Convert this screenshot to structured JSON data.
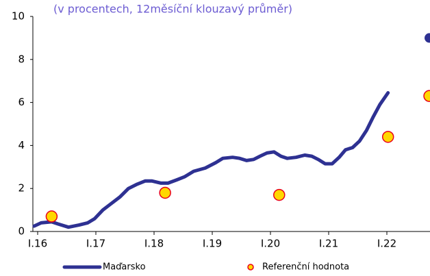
{
  "chart_data": {
    "type": "line",
    "subtitle": "(v procentech, 12měsíční klouzavý průměr)",
    "xlim": [
      2015.92,
      2022.75
    ],
    "xticks": [
      {
        "value": 2016,
        "label": "I.16"
      },
      {
        "value": 2017,
        "label": "I.17"
      },
      {
        "value": 2018,
        "label": "I.18"
      },
      {
        "value": 2019,
        "label": "I.19"
      },
      {
        "value": 2020,
        "label": "I.20"
      },
      {
        "value": 2021,
        "label": "I.21"
      },
      {
        "value": 2022,
        "label": "I.22"
      }
    ],
    "ylim": [
      0,
      10
    ],
    "yticks": [
      0,
      2,
      4,
      6,
      8,
      10
    ],
    "legend": "bottom",
    "series": [
      {
        "name": "Maďarsko",
        "color": "#2e3192",
        "style": "line",
        "x": [
          2015.94,
          2016.06,
          2016.24,
          2016.35,
          2016.53,
          2016.71,
          2016.86,
          2016.98,
          2017.12,
          2017.24,
          2017.41,
          2017.56,
          2017.71,
          2017.85,
          2017.96,
          2018.12,
          2018.24,
          2018.39,
          2018.53,
          2018.68,
          2018.88,
          2019.06,
          2019.18,
          2019.35,
          2019.47,
          2019.59,
          2019.71,
          2019.82,
          2019.94,
          2020.06,
          2020.18,
          2020.29,
          2020.44,
          2020.59,
          2020.71,
          2020.82,
          2020.94,
          2021.06,
          2021.18,
          2021.29,
          2021.41,
          2021.53,
          2021.65,
          2021.76,
          2021.88,
          2022.02
        ],
        "values": [
          0.25,
          0.4,
          0.45,
          0.35,
          0.2,
          0.3,
          0.4,
          0.6,
          1.0,
          1.25,
          1.6,
          2.0,
          2.2,
          2.35,
          2.35,
          2.25,
          2.25,
          2.4,
          2.55,
          2.8,
          2.95,
          3.2,
          3.4,
          3.45,
          3.4,
          3.3,
          3.35,
          3.5,
          3.65,
          3.7,
          3.5,
          3.4,
          3.45,
          3.55,
          3.5,
          3.35,
          3.15,
          3.15,
          3.45,
          3.8,
          3.9,
          4.2,
          4.7,
          5.3,
          5.9,
          6.45
        ]
      },
      {
        "name": "Referenční hodnota",
        "color": "#ffd700",
        "edge": "#e8001c",
        "style": "marker",
        "x": [
          2016.24,
          2018.19,
          2020.15,
          2022.02,
          2022.73
        ],
        "values": [
          0.7,
          1.8,
          1.7,
          4.4,
          6.3
        ]
      },
      {
        "color": "#2e3192",
        "style": "dot",
        "x": [
          2022.73
        ],
        "values": [
          9.0
        ]
      }
    ]
  }
}
